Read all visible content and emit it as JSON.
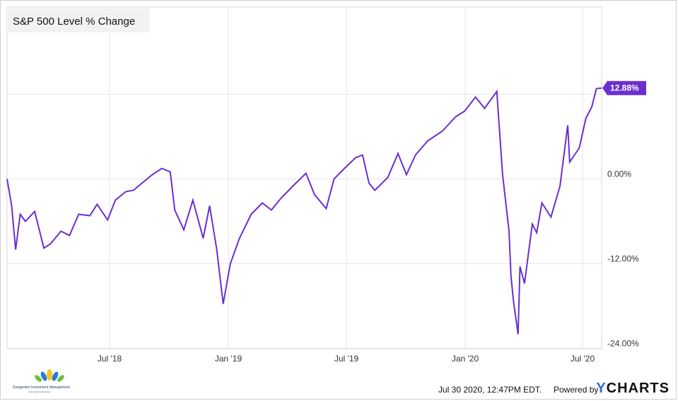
{
  "chart_data": {
    "type": "line",
    "title": "S&P 500 Level % Change",
    "xlabel": "",
    "ylabel": "",
    "x_ticks": [
      "Jul '18",
      "Jan '19",
      "Jul '19",
      "Jan '20",
      "Jul '20"
    ],
    "y_ticks": [
      "0.00%",
      "-12.00%",
      "-24.00%"
    ],
    "ylim": [
      -24,
      24
    ],
    "last_value_label": "12.88%",
    "series": [
      {
        "color": "#6a2fd1",
        "points": [
          [
            "2018-01-26",
            0.0
          ],
          [
            "2018-02-02",
            -3.8
          ],
          [
            "2018-02-08",
            -10.0
          ],
          [
            "2018-02-15",
            -5.0
          ],
          [
            "2018-02-23",
            -6.0
          ],
          [
            "2018-03-09",
            -4.6
          ],
          [
            "2018-03-23",
            -9.8
          ],
          [
            "2018-04-02",
            -9.2
          ],
          [
            "2018-04-18",
            -7.4
          ],
          [
            "2018-05-01",
            -8.0
          ],
          [
            "2018-05-15",
            -5.0
          ],
          [
            "2018-06-01",
            -5.2
          ],
          [
            "2018-06-12",
            -3.6
          ],
          [
            "2018-06-28",
            -5.8
          ],
          [
            "2018-07-10",
            -3.0
          ],
          [
            "2018-07-26",
            -1.8
          ],
          [
            "2018-08-07",
            -1.6
          ],
          [
            "2018-08-20",
            -0.6
          ],
          [
            "2018-09-05",
            0.6
          ],
          [
            "2018-09-20",
            1.5
          ],
          [
            "2018-10-03",
            1.0
          ],
          [
            "2018-10-10",
            -4.4
          ],
          [
            "2018-10-24",
            -7.2
          ],
          [
            "2018-11-07",
            -3.0
          ],
          [
            "2018-11-23",
            -8.4
          ],
          [
            "2018-12-03",
            -3.8
          ],
          [
            "2018-12-14",
            -10.0
          ],
          [
            "2018-12-24",
            -17.7
          ],
          [
            "2019-01-04",
            -12.0
          ],
          [
            "2019-01-18",
            -8.4
          ],
          [
            "2019-02-05",
            -5.0
          ],
          [
            "2019-02-22",
            -3.4
          ],
          [
            "2019-03-08",
            -4.4
          ],
          [
            "2019-03-22",
            -2.8
          ],
          [
            "2019-04-10",
            -1.0
          ],
          [
            "2019-04-30",
            0.8
          ],
          [
            "2019-05-13",
            -2.2
          ],
          [
            "2019-05-31",
            -4.2
          ],
          [
            "2019-06-12",
            0.0
          ],
          [
            "2019-06-28",
            1.5
          ],
          [
            "2019-07-15",
            3.0
          ],
          [
            "2019-07-26",
            3.4
          ],
          [
            "2019-08-05",
            -0.6
          ],
          [
            "2019-08-14",
            -1.6
          ],
          [
            "2019-09-03",
            0.2
          ],
          [
            "2019-09-19",
            3.6
          ],
          [
            "2019-10-02",
            0.6
          ],
          [
            "2019-10-16",
            3.4
          ],
          [
            "2019-11-04",
            5.4
          ],
          [
            "2019-11-27",
            6.8
          ],
          [
            "2019-12-17",
            8.8
          ],
          [
            "2019-12-31",
            9.6
          ],
          [
            "2020-01-17",
            11.6
          ],
          [
            "2020-01-31",
            10.0
          ],
          [
            "2020-02-19",
            12.4
          ],
          [
            "2020-02-28",
            0.6
          ],
          [
            "2020-03-09",
            -7.4
          ],
          [
            "2020-03-12",
            -13.8
          ],
          [
            "2020-03-16",
            -17.4
          ],
          [
            "2020-03-23",
            -22.0
          ],
          [
            "2020-03-26",
            -12.4
          ],
          [
            "2020-04-02",
            -14.8
          ],
          [
            "2020-04-14",
            -6.4
          ],
          [
            "2020-04-21",
            -7.6
          ],
          [
            "2020-04-29",
            -3.4
          ],
          [
            "2020-05-13",
            -5.4
          ],
          [
            "2020-05-27",
            -1.0
          ],
          [
            "2020-06-08",
            7.6
          ],
          [
            "2020-06-11",
            2.4
          ],
          [
            "2020-06-26",
            4.4
          ],
          [
            "2020-07-06",
            8.6
          ],
          [
            "2020-07-15",
            10.2
          ],
          [
            "2020-07-22",
            12.8
          ],
          [
            "2020-07-30",
            12.88
          ]
        ]
      }
    ],
    "grid": true,
    "legend": "none"
  },
  "footer": {
    "timestamp": "Jul 30 2020, 12:47PM EDT.",
    "powered_by": "Powered by",
    "brand_y": "Y",
    "brand_rest": "CHARTS"
  },
  "logo": {
    "name": "Sungarden Investment Management",
    "tagline": "The Investing Evolution",
    "colors": [
      "#2b7bd6",
      "#f3c623",
      "#6cbf3a"
    ]
  }
}
